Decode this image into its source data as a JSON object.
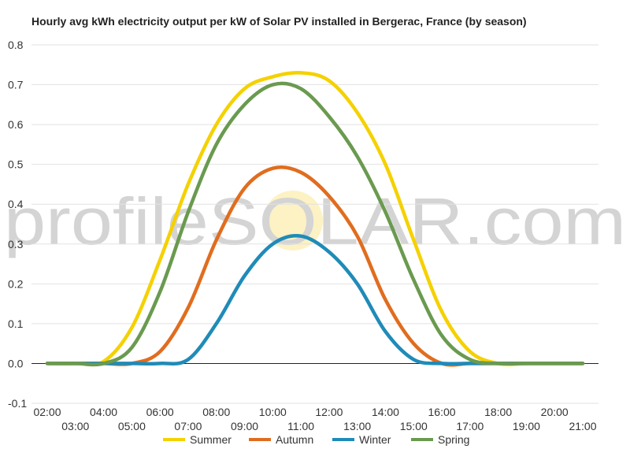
{
  "chart_data": {
    "type": "line",
    "title": "Hourly avg kWh electricity output per kW of Solar PV installed in Bergerac, France (by season)",
    "watermark": "profileSOLAR.com",
    "ylim": [
      -0.1,
      0.8
    ],
    "yticks": [
      "-0.1",
      "0.0",
      "0.1",
      "0.2",
      "0.3",
      "0.4",
      "0.5",
      "0.6",
      "0.7",
      "0.8"
    ],
    "x": [
      "02:00",
      "03:00",
      "04:00",
      "05:00",
      "06:00",
      "07:00",
      "08:00",
      "09:00",
      "10:00",
      "11:00",
      "12:00",
      "13:00",
      "14:00",
      "15:00",
      "16:00",
      "17:00",
      "18:00",
      "19:00",
      "20:00",
      "21:00"
    ],
    "xticks_upper": [
      "02:00",
      "04:00",
      "06:00",
      "08:00",
      "10:00",
      "12:00",
      "14:00",
      "16:00",
      "18:00",
      "20:00"
    ],
    "xticks_lower": [
      "03:00",
      "05:00",
      "07:00",
      "09:00",
      "11:00",
      "13:00",
      "15:00",
      "17:00",
      "19:00",
      "21:00"
    ],
    "grid": true,
    "legend": "bottom",
    "series": [
      {
        "name": "Summer",
        "color": "#f5d100",
        "values": [
          0,
          0,
          0.005,
          0.09,
          0.26,
          0.45,
          0.6,
          0.69,
          0.72,
          0.73,
          0.71,
          0.63,
          0.5,
          0.31,
          0.13,
          0.03,
          0,
          0,
          0,
          0
        ]
      },
      {
        "name": "Autumn",
        "color": "#e06d1f",
        "values": [
          0,
          0,
          0,
          0,
          0.03,
          0.14,
          0.31,
          0.44,
          0.49,
          0.48,
          0.42,
          0.32,
          0.16,
          0.05,
          0,
          0,
          0,
          0,
          0,
          0
        ]
      },
      {
        "name": "Winter",
        "color": "#1f8bb8",
        "values": [
          0,
          0,
          0,
          0,
          0,
          0.01,
          0.1,
          0.22,
          0.3,
          0.32,
          0.28,
          0.2,
          0.08,
          0.01,
          0,
          0,
          0,
          0,
          0,
          0
        ]
      },
      {
        "name": "Spring",
        "color": "#6a9a4f",
        "values": [
          0,
          0,
          0,
          0.04,
          0.18,
          0.38,
          0.55,
          0.65,
          0.7,
          0.69,
          0.62,
          0.52,
          0.38,
          0.21,
          0.07,
          0.01,
          0,
          0,
          0,
          0
        ]
      }
    ]
  }
}
